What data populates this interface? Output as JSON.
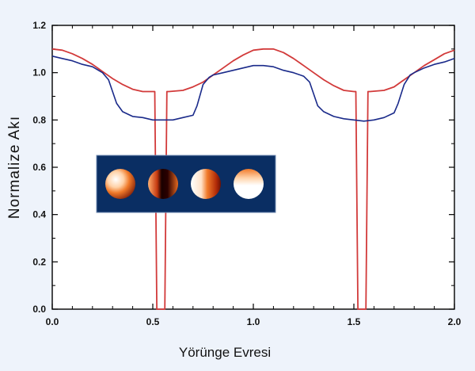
{
  "chart_data": {
    "type": "line",
    "title": "",
    "xlabel": "Yörünge Evresi",
    "ylabel": "Normalize Akı",
    "xlim": [
      0.0,
      2.0
    ],
    "ylim": [
      0.0,
      1.2
    ],
    "x_ticks": [
      "0.0",
      "0.5",
      "1.0",
      "1.5",
      "2.0"
    ],
    "y_ticks": [
      "0.0",
      "0.2",
      "0.4",
      "0.6",
      "0.8",
      "1.0",
      "1.2"
    ],
    "grid": false,
    "legend": "none",
    "series": [
      {
        "color": "#d23a3a",
        "x": [
          0.0,
          0.05,
          0.1,
          0.15,
          0.2,
          0.25,
          0.3,
          0.35,
          0.4,
          0.45,
          0.5,
          0.51,
          0.52,
          0.56,
          0.57,
          0.58,
          0.65,
          0.7,
          0.75,
          0.8,
          0.85,
          0.9,
          0.95,
          1.0,
          1.05,
          1.1,
          1.15,
          1.2,
          1.25,
          1.3,
          1.35,
          1.4,
          1.45,
          1.5,
          1.51,
          1.52,
          1.56,
          1.57,
          1.58,
          1.65,
          1.7,
          1.75,
          1.8,
          1.85,
          1.9,
          1.95,
          2.0
        ],
        "values": [
          1.1,
          1.095,
          1.08,
          1.06,
          1.035,
          1.005,
          0.975,
          0.95,
          0.93,
          0.92,
          0.92,
          0.92,
          0.0,
          0.0,
          0.92,
          0.92,
          0.925,
          0.94,
          0.96,
          0.99,
          1.02,
          1.05,
          1.075,
          1.095,
          1.1,
          1.1,
          1.085,
          1.06,
          1.03,
          1.0,
          0.97,
          0.945,
          0.925,
          0.92,
          0.92,
          0.0,
          0.0,
          0.92,
          0.92,
          0.925,
          0.94,
          0.97,
          1.0,
          1.03,
          1.055,
          1.08,
          1.095
        ]
      },
      {
        "color": "#1a2a8a",
        "x": [
          0.0,
          0.05,
          0.1,
          0.15,
          0.2,
          0.25,
          0.28,
          0.32,
          0.35,
          0.4,
          0.45,
          0.5,
          0.55,
          0.6,
          0.65,
          0.7,
          0.72,
          0.75,
          0.78,
          0.8,
          0.85,
          0.9,
          0.95,
          1.0,
          1.05,
          1.1,
          1.15,
          1.2,
          1.25,
          1.28,
          1.32,
          1.35,
          1.4,
          1.45,
          1.5,
          1.55,
          1.6,
          1.65,
          1.7,
          1.72,
          1.75,
          1.78,
          1.8,
          1.85,
          1.9,
          1.95,
          2.0
        ],
        "values": [
          1.07,
          1.06,
          1.05,
          1.035,
          1.025,
          1.0,
          0.97,
          0.87,
          0.835,
          0.815,
          0.81,
          0.8,
          0.8,
          0.8,
          0.81,
          0.82,
          0.86,
          0.95,
          0.98,
          0.99,
          1.0,
          1.01,
          1.02,
          1.03,
          1.03,
          1.025,
          1.01,
          1.0,
          0.985,
          0.96,
          0.86,
          0.835,
          0.815,
          0.805,
          0.8,
          0.795,
          0.8,
          0.81,
          0.83,
          0.87,
          0.95,
          0.99,
          1.0,
          1.02,
          1.035,
          1.045,
          1.06
        ]
      }
    ],
    "inset": {
      "type": "image",
      "description_colors": [
        "#0a2a5a",
        "#e05a10",
        "#ffffff"
      ],
      "spheres": 4
    }
  }
}
